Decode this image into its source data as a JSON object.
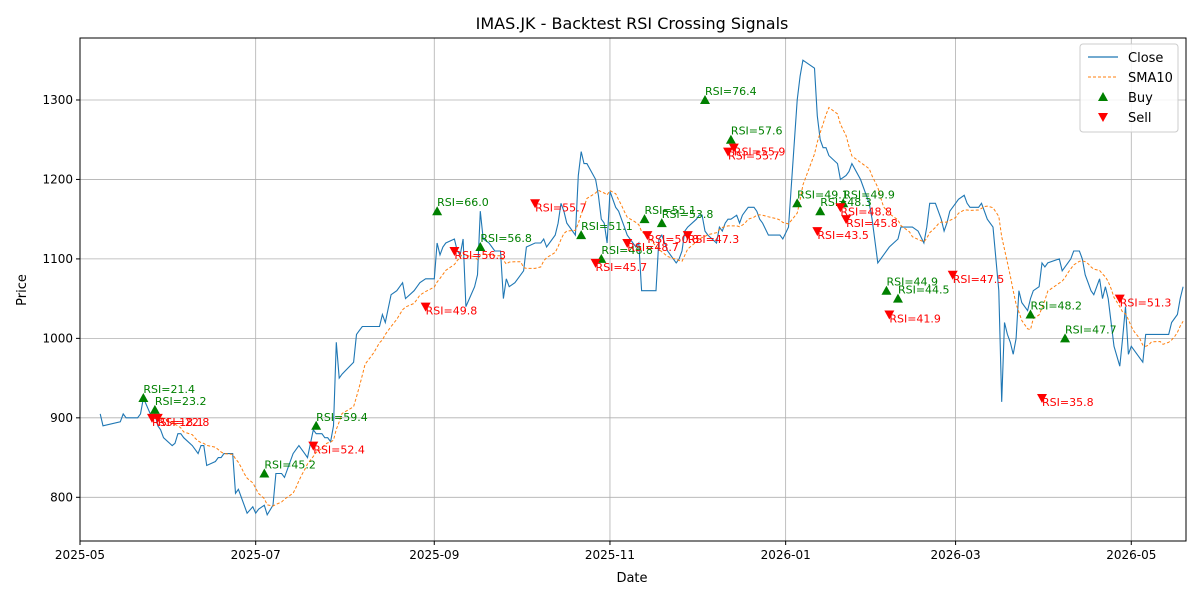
{
  "chart_data": {
    "type": "line",
    "title": "IMAS.JK - Backtest RSI Crossing Signals",
    "xlabel": "Date",
    "ylabel": "Price",
    "xlim": [
      "2025-05-01",
      "2026-05-20"
    ],
    "ylim": [
      745,
      1378
    ],
    "grid": true,
    "legend_position": "top-right",
    "x_ticks": [
      "2025-05",
      "2025-07",
      "2025-09",
      "2025-11",
      "2026-01",
      "2026-03",
      "2026-05"
    ],
    "x_tick_dates": [
      "2025-05-01",
      "2025-07-01",
      "2025-09-01",
      "2025-11-01",
      "2026-01-01",
      "2026-03-01",
      "2026-05-01"
    ],
    "y_ticks": [
      800,
      900,
      1000,
      1100,
      1200,
      1300
    ],
    "legend": [
      {
        "label": "Close",
        "kind": "line",
        "color": "#1f77b4"
      },
      {
        "label": "SMA10",
        "kind": "dashed",
        "color": "#ff7f0e"
      },
      {
        "label": "Buy",
        "kind": "up-triangle",
        "color": "#008000"
      },
      {
        "label": "Sell",
        "kind": "down-triangle",
        "color": "#ff0000"
      }
    ],
    "series": [
      {
        "name": "Close",
        "color": "#1f77b4",
        "points": [
          [
            "2025-05-08",
            905
          ],
          [
            "2025-05-09",
            890
          ],
          [
            "2025-05-15",
            895
          ],
          [
            "2025-05-16",
            905
          ],
          [
            "2025-05-17",
            900
          ],
          [
            "2025-05-20",
            900
          ],
          [
            "2025-05-21",
            900
          ],
          [
            "2025-05-22",
            905
          ],
          [
            "2025-05-23",
            925
          ],
          [
            "2025-05-26",
            900
          ],
          [
            "2025-05-27",
            905
          ],
          [
            "2025-05-28",
            890
          ],
          [
            "2025-05-29",
            885
          ],
          [
            "2025-05-30",
            875
          ],
          [
            "2025-06-02",
            865
          ],
          [
            "2025-06-03",
            868
          ],
          [
            "2025-06-04",
            880
          ],
          [
            "2025-06-05",
            880
          ],
          [
            "2025-06-06",
            875
          ],
          [
            "2025-06-09",
            865
          ],
          [
            "2025-06-10",
            860
          ],
          [
            "2025-06-11",
            855
          ],
          [
            "2025-06-12",
            865
          ],
          [
            "2025-06-13",
            865
          ],
          [
            "2025-06-14",
            840
          ],
          [
            "2025-06-17",
            845
          ],
          [
            "2025-06-18",
            850
          ],
          [
            "2025-06-19",
            850
          ],
          [
            "2025-06-20",
            855
          ],
          [
            "2025-06-23",
            855
          ],
          [
            "2025-06-24",
            805
          ],
          [
            "2025-06-25",
            810
          ],
          [
            "2025-06-26",
            800
          ],
          [
            "2025-06-27",
            790
          ],
          [
            "2025-06-28",
            780
          ],
          [
            "2025-06-30",
            788
          ],
          [
            "2025-07-01",
            780
          ],
          [
            "2025-07-02",
            785
          ],
          [
            "2025-07-04",
            790
          ],
          [
            "2025-07-05",
            778
          ],
          [
            "2025-07-07",
            790
          ],
          [
            "2025-07-08",
            830
          ],
          [
            "2025-07-10",
            830
          ],
          [
            "2025-07-11",
            825
          ],
          [
            "2025-07-14",
            855
          ],
          [
            "2025-07-15",
            860
          ],
          [
            "2025-07-16",
            865
          ],
          [
            "2025-07-17",
            860
          ],
          [
            "2025-07-18",
            855
          ],
          [
            "2025-07-19",
            850
          ],
          [
            "2025-07-21",
            885
          ],
          [
            "2025-07-22",
            880
          ],
          [
            "2025-07-24",
            880
          ],
          [
            "2025-07-25",
            875
          ],
          [
            "2025-07-26",
            875
          ],
          [
            "2025-07-27",
            870
          ],
          [
            "2025-07-28",
            890
          ],
          [
            "2025-07-29",
            995
          ],
          [
            "2025-07-30",
            950
          ],
          [
            "2025-07-31",
            955
          ],
          [
            "2025-08-04",
            970
          ],
          [
            "2025-08-05",
            1005
          ],
          [
            "2025-08-06",
            1010
          ],
          [
            "2025-08-07",
            1015
          ],
          [
            "2025-08-08",
            1015
          ],
          [
            "2025-08-11",
            1015
          ],
          [
            "2025-08-13",
            1015
          ],
          [
            "2025-08-14",
            1030
          ],
          [
            "2025-08-15",
            1020
          ],
          [
            "2025-08-17",
            1055
          ],
          [
            "2025-08-19",
            1060
          ],
          [
            "2025-08-20",
            1065
          ],
          [
            "2025-08-21",
            1070
          ],
          [
            "2025-08-22",
            1050
          ],
          [
            "2025-08-25",
            1060
          ],
          [
            "2025-08-26",
            1065
          ],
          [
            "2025-08-27",
            1070
          ],
          [
            "2025-08-29",
            1075
          ],
          [
            "2025-09-01",
            1075
          ],
          [
            "2025-09-02",
            1120
          ],
          [
            "2025-09-03",
            1105
          ],
          [
            "2025-09-04",
            1115
          ],
          [
            "2025-09-05",
            1120
          ],
          [
            "2025-09-08",
            1125
          ],
          [
            "2025-09-09",
            1110
          ],
          [
            "2025-09-10",
            1105
          ],
          [
            "2025-09-11",
            1125
          ],
          [
            "2025-09-12",
            1040
          ],
          [
            "2025-09-15",
            1065
          ],
          [
            "2025-09-16",
            1080
          ],
          [
            "2025-09-17",
            1160
          ],
          [
            "2025-09-18",
            1125
          ],
          [
            "2025-09-20",
            1120
          ],
          [
            "2025-09-22",
            1110
          ],
          [
            "2025-09-24",
            1110
          ],
          [
            "2025-09-25",
            1050
          ],
          [
            "2025-09-26",
            1075
          ],
          [
            "2025-09-27",
            1065
          ],
          [
            "2025-09-29",
            1070
          ],
          [
            "2025-10-01",
            1080
          ],
          [
            "2025-10-02",
            1085
          ],
          [
            "2025-10-03",
            1115
          ],
          [
            "2025-10-06",
            1120
          ],
          [
            "2025-10-07",
            1120
          ],
          [
            "2025-10-08",
            1120
          ],
          [
            "2025-10-09",
            1125
          ],
          [
            "2025-10-10",
            1115
          ],
          [
            "2025-10-13",
            1130
          ],
          [
            "2025-10-14",
            1145
          ],
          [
            "2025-10-15",
            1170
          ],
          [
            "2025-10-16",
            1160
          ],
          [
            "2025-10-17",
            1145
          ],
          [
            "2025-10-20",
            1130
          ],
          [
            "2025-10-21",
            1205
          ],
          [
            "2025-10-22",
            1235
          ],
          [
            "2025-10-23",
            1220
          ],
          [
            "2025-10-24",
            1220
          ],
          [
            "2025-10-27",
            1200
          ],
          [
            "2025-10-28",
            1180
          ],
          [
            "2025-10-29",
            1150
          ],
          [
            "2025-10-30",
            1145
          ],
          [
            "2025-10-31",
            1120
          ],
          [
            "2025-11-01",
            1185
          ],
          [
            "2025-11-03",
            1165
          ],
          [
            "2025-11-04",
            1160
          ],
          [
            "2025-11-05",
            1150
          ],
          [
            "2025-11-06",
            1140
          ],
          [
            "2025-11-07",
            1130
          ],
          [
            "2025-11-10",
            1115
          ],
          [
            "2025-11-11",
            1120
          ],
          [
            "2025-11-12",
            1060
          ],
          [
            "2025-11-14",
            1060
          ],
          [
            "2025-11-17",
            1060
          ],
          [
            "2025-11-18",
            1125
          ],
          [
            "2025-11-19",
            1130
          ],
          [
            "2025-11-20",
            1120
          ],
          [
            "2025-11-21",
            1110
          ],
          [
            "2025-11-24",
            1095
          ],
          [
            "2025-11-25",
            1100
          ],
          [
            "2025-11-26",
            1110
          ],
          [
            "2025-11-27",
            1135
          ],
          [
            "2025-11-28",
            1140
          ],
          [
            "2025-12-01",
            1150
          ],
          [
            "2025-12-02",
            1155
          ],
          [
            "2025-12-03",
            1155
          ],
          [
            "2025-12-04",
            1135
          ],
          [
            "2025-12-05",
            1130
          ],
          [
            "2025-12-08",
            1120
          ],
          [
            "2025-12-09",
            1140
          ],
          [
            "2025-12-10",
            1135
          ],
          [
            "2025-12-11",
            1145
          ],
          [
            "2025-12-12",
            1150
          ],
          [
            "2025-12-13",
            1150
          ],
          [
            "2025-12-15",
            1155
          ],
          [
            "2025-12-16",
            1145
          ],
          [
            "2025-12-17",
            1155
          ],
          [
            "2025-12-18",
            1160
          ],
          [
            "2025-12-19",
            1165
          ],
          [
            "2025-12-21",
            1165
          ],
          [
            "2025-12-22",
            1160
          ],
          [
            "2025-12-23",
            1150
          ],
          [
            "2025-12-24",
            1145
          ],
          [
            "2025-12-26",
            1130
          ],
          [
            "2025-12-29",
            1130
          ],
          [
            "2025-12-30",
            1130
          ],
          [
            "2025-12-31",
            1125
          ],
          [
            "2026-01-02",
            1140
          ],
          [
            "2026-01-05",
            1300
          ],
          [
            "2026-01-06",
            1330
          ],
          [
            "2026-01-07",
            1350
          ],
          [
            "2026-01-09",
            1345
          ],
          [
            "2026-01-11",
            1340
          ],
          [
            "2026-01-12",
            1280
          ],
          [
            "2026-01-13",
            1250
          ],
          [
            "2026-01-14",
            1240
          ],
          [
            "2026-01-15",
            1240
          ],
          [
            "2026-01-16",
            1230
          ],
          [
            "2026-01-19",
            1220
          ],
          [
            "2026-01-20",
            1200
          ],
          [
            "2026-01-22",
            1205
          ],
          [
            "2026-01-23",
            1210
          ],
          [
            "2026-01-24",
            1220
          ],
          [
            "2026-01-27",
            1200
          ],
          [
            "2026-01-30",
            1170
          ],
          [
            "2026-01-31",
            1150
          ],
          [
            "2026-02-02",
            1095
          ],
          [
            "2026-02-03",
            1100
          ],
          [
            "2026-02-04",
            1105
          ],
          [
            "2026-02-06",
            1115
          ],
          [
            "2026-02-09",
            1125
          ],
          [
            "2026-02-10",
            1140
          ],
          [
            "2026-02-13",
            1140
          ],
          [
            "2026-02-14",
            1140
          ],
          [
            "2026-02-16",
            1135
          ],
          [
            "2026-02-18",
            1120
          ],
          [
            "2026-02-19",
            1140
          ],
          [
            "2026-02-20",
            1170
          ],
          [
            "2026-02-22",
            1170
          ],
          [
            "2026-02-23",
            1160
          ],
          [
            "2026-02-24",
            1150
          ],
          [
            "2026-02-25",
            1135
          ],
          [
            "2026-02-26",
            1145
          ],
          [
            "2026-02-27",
            1160
          ],
          [
            "2026-03-01",
            1170
          ],
          [
            "2026-03-02",
            1175
          ],
          [
            "2026-03-04",
            1180
          ],
          [
            "2026-03-05",
            1170
          ],
          [
            "2026-03-06",
            1165
          ],
          [
            "2026-03-09",
            1165
          ],
          [
            "2026-03-10",
            1170
          ],
          [
            "2026-03-11",
            1160
          ],
          [
            "2026-03-12",
            1150
          ],
          [
            "2026-03-14",
            1140
          ],
          [
            "2026-03-16",
            1060
          ],
          [
            "2026-03-17",
            920
          ],
          [
            "2026-03-18",
            1020
          ],
          [
            "2026-03-19",
            1005
          ],
          [
            "2026-03-20",
            995
          ],
          [
            "2026-03-21",
            980
          ],
          [
            "2026-03-22",
            1000
          ],
          [
            "2026-03-23",
            1060
          ],
          [
            "2026-03-24",
            1045
          ],
          [
            "2026-03-26",
            1035
          ],
          [
            "2026-03-27",
            1050
          ],
          [
            "2026-03-28",
            1060
          ],
          [
            "2026-03-30",
            1065
          ],
          [
            "2026-03-31",
            1095
          ],
          [
            "2026-04-01",
            1090
          ],
          [
            "2026-04-02",
            1095
          ],
          [
            "2026-04-06",
            1100
          ],
          [
            "2026-04-07",
            1085
          ],
          [
            "2026-04-08",
            1090
          ],
          [
            "2026-04-09",
            1095
          ],
          [
            "2026-04-10",
            1100
          ],
          [
            "2026-04-11",
            1110
          ],
          [
            "2026-04-13",
            1110
          ],
          [
            "2026-04-14",
            1100
          ],
          [
            "2026-04-15",
            1080
          ],
          [
            "2026-04-16",
            1070
          ],
          [
            "2026-04-17",
            1060
          ],
          [
            "2026-04-18",
            1055
          ],
          [
            "2026-04-20",
            1075
          ],
          [
            "2026-04-21",
            1050
          ],
          [
            "2026-04-22",
            1065
          ],
          [
            "2026-04-23",
            1050
          ],
          [
            "2026-04-24",
            1020
          ],
          [
            "2026-04-25",
            990
          ],
          [
            "2026-04-27",
            965
          ],
          [
            "2026-04-28",
            1000
          ],
          [
            "2026-04-29",
            1040
          ],
          [
            "2026-04-30",
            980
          ],
          [
            "2026-05-01",
            990
          ],
          [
            "2026-05-02",
            985
          ],
          [
            "2026-05-04",
            975
          ],
          [
            "2026-05-05",
            970
          ],
          [
            "2026-05-06",
            1005
          ],
          [
            "2026-05-07",
            1005
          ],
          [
            "2026-05-08",
            1005
          ],
          [
            "2026-05-11",
            1005
          ],
          [
            "2026-05-12",
            1005
          ],
          [
            "2026-05-14",
            1005
          ],
          [
            "2026-05-15",
            1020
          ],
          [
            "2026-05-16",
            1025
          ],
          [
            "2026-05-17",
            1030
          ],
          [
            "2026-05-18",
            1050
          ],
          [
            "2026-05-19",
            1065
          ]
        ]
      },
      {
        "name": "SMA10",
        "color": "#ff7f0e",
        "points": []
      }
    ],
    "buy_signals": [],
    "sell_signals": []
  }
}
